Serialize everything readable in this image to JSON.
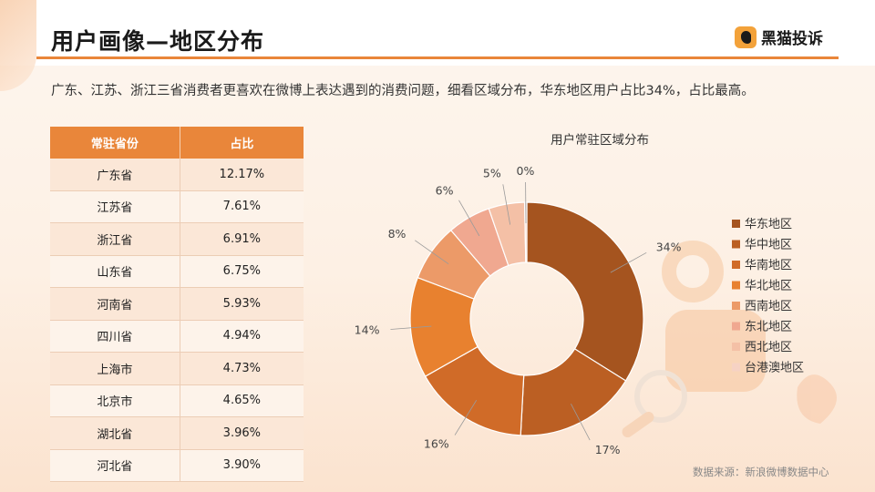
{
  "header": {
    "title": "用户画像—地区分布",
    "logo_text": "黑猫投诉"
  },
  "summary": "广东、江苏、浙江三省消费者更喜欢在微博上表达遇到的消费问题，细看区域分布，华东地区用户占比34%，占比最高。",
  "table": {
    "headers": [
      "常驻省份",
      "占比"
    ],
    "rows": [
      [
        "广东省",
        "12.17%"
      ],
      [
        "江苏省",
        "7.61%"
      ],
      [
        "浙江省",
        "6.91%"
      ],
      [
        "山东省",
        "6.75%"
      ],
      [
        "河南省",
        "5.93%"
      ],
      [
        "四川省",
        "4.94%"
      ],
      [
        "上海市",
        "4.73%"
      ],
      [
        "北京市",
        "4.65%"
      ],
      [
        "湖北省",
        "3.96%"
      ],
      [
        "河北省",
        "3.90%"
      ]
    ]
  },
  "chart_data": {
    "type": "pie",
    "title": "用户常驻区域分布",
    "categories": [
      "华东地区",
      "华中地区",
      "华南地区",
      "华北地区",
      "西南地区",
      "东北地区",
      "西北地区",
      "台港澳地区"
    ],
    "values": [
      34,
      17,
      16,
      14,
      8,
      6,
      5,
      0.3
    ],
    "labels": [
      "34%",
      "17%",
      "16%",
      "14%",
      "8%",
      "6%",
      "5%",
      "0%"
    ],
    "colors": [
      "#a5541f",
      "#bb5f23",
      "#d06b28",
      "#e8812f",
      "#ec9a68",
      "#f0a890",
      "#f4c0a6",
      "#f6d2c4"
    ],
    "legend_position": "right",
    "donut": true
  },
  "footer": {
    "source": "数据来源：新浪微博数据中心"
  }
}
